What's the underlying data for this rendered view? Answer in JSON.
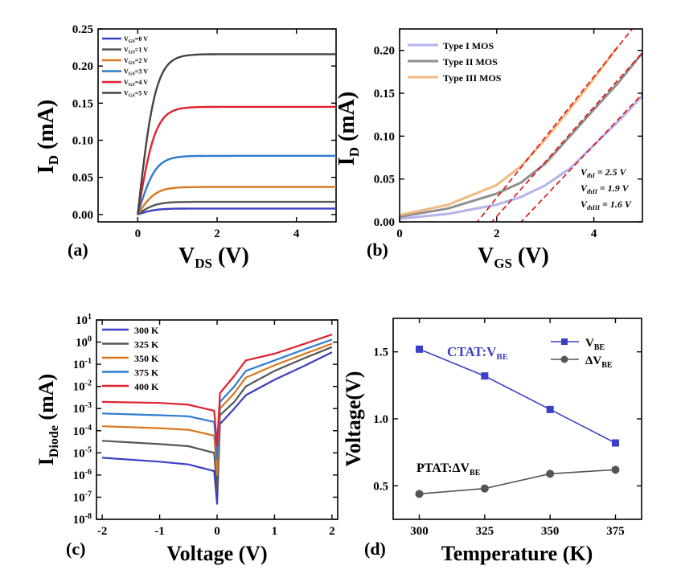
{
  "chart_data": [
    {
      "panel": "(a)",
      "type": "line",
      "xlabel": "V_DS (V)",
      "xlabel_main": "V",
      "xlabel_sub": "DS",
      "xlabel_unit": " (V)",
      "ylabel": "I_D (mA)",
      "ylabel_main": "I",
      "ylabel_sub": "D",
      "ylabel_unit": " (mA)",
      "xlim": [
        -1,
        5
      ],
      "ylim": [
        -0.01,
        0.25
      ],
      "xticks": [
        0,
        2,
        4
      ],
      "yticks": [
        0.0,
        0.05,
        0.1,
        0.15,
        0.2,
        0.25
      ],
      "ytick_labels": [
        "0.00",
        "0.05",
        "0.10",
        "0.15",
        "0.20",
        "0.25"
      ],
      "legend_position": "top-left",
      "series": [
        {
          "name": "VGS=0 V",
          "color": "#3b3fc6",
          "sat": 0.008,
          "x": [
            0,
            0.2,
            0.5,
            1,
            2,
            3,
            4,
            5
          ],
          "values": [
            0,
            0.004,
            0.007,
            0.008,
            0.008,
            0.008,
            0.008,
            0.008
          ]
        },
        {
          "name": "VGS=1 V",
          "color": "#555555",
          "sat": 0.017,
          "x": [
            0,
            0.2,
            0.5,
            1,
            2,
            3,
            4,
            5
          ],
          "values": [
            0,
            0.009,
            0.014,
            0.016,
            0.017,
            0.017,
            0.017,
            0.017
          ]
        },
        {
          "name": "VGS=2 V",
          "color": "#d9771a",
          "sat": 0.037,
          "x": [
            0,
            0.2,
            0.5,
            1,
            2,
            3,
            4,
            5
          ],
          "values": [
            0,
            0.017,
            0.029,
            0.035,
            0.037,
            0.037,
            0.037,
            0.037
          ]
        },
        {
          "name": "VGS=3 V",
          "color": "#2e7bcf",
          "sat": 0.079,
          "x": [
            0,
            0.2,
            0.5,
            1,
            2,
            3,
            4,
            5
          ],
          "values": [
            0,
            0.035,
            0.061,
            0.074,
            0.078,
            0.079,
            0.079,
            0.079
          ]
        },
        {
          "name": "VGS=4 V",
          "color": "#e02030",
          "sat": 0.145,
          "x": [
            0,
            0.2,
            0.5,
            1,
            2,
            3,
            4,
            5
          ],
          "values": [
            0,
            0.062,
            0.11,
            0.134,
            0.143,
            0.145,
            0.145,
            0.145
          ]
        },
        {
          "name": "VGS=5 V",
          "color": "#444444",
          "sat": 0.216,
          "x": [
            0,
            0.2,
            0.5,
            1,
            2,
            3,
            4,
            5
          ],
          "values": [
            0,
            0.09,
            0.16,
            0.198,
            0.213,
            0.215,
            0.216,
            0.216
          ]
        }
      ]
    },
    {
      "panel": "(b)",
      "type": "line",
      "xlabel": "V_GS (V)",
      "xlabel_main": "V",
      "xlabel_sub": "GS",
      "xlabel_unit": " (V)",
      "ylabel": "I_D (mA)",
      "ylabel_main": "I",
      "ylabel_sub": "D",
      "ylabel_unit": " (mA)",
      "xlim": [
        0,
        5
      ],
      "ylim": [
        0,
        0.225
      ],
      "xticks": [
        0,
        2,
        4
      ],
      "yticks": [
        0.0,
        0.05,
        0.1,
        0.15,
        0.2
      ],
      "ytick_labels": [
        "0.00",
        "0.05",
        "0.10",
        "0.15",
        "0.20"
      ],
      "legend_position": "top-left",
      "series": [
        {
          "name": "Type I MOS",
          "color": "#b3b3ee",
          "vth": 2.5,
          "slope": 0.0597,
          "x": [
            0,
            1,
            2,
            2.5,
            3,
            3.5,
            4,
            4.5,
            5
          ],
          "values": [
            0.0037,
            0.0094,
            0.0201,
            0.0291,
            0.0427,
            0.062,
            0.0893,
            0.117,
            0.147
          ]
        },
        {
          "name": "Type II MOS",
          "color": "#8f8f8f",
          "vth": 1.9,
          "slope": 0.0637,
          "x": [
            0,
            1,
            2,
            2.5,
            3,
            3.5,
            4,
            4.5,
            5
          ],
          "values": [
            0.006,
            0.0157,
            0.033,
            0.0458,
            0.0679,
            0.0995,
            0.131,
            0.162,
            0.197
          ]
        },
        {
          "name": "Type III MOS",
          "color": "#f0b97f",
          "vth": 1.6,
          "slope": 0.0705,
          "x": [
            0,
            1,
            2,
            2.5,
            3,
            3.5,
            4,
            4.5
          ],
          "values": [
            0.008,
            0.02,
            0.043,
            0.065,
            0.096,
            0.131,
            0.167,
            0.205
          ]
        }
      ],
      "fit_lines": {
        "color": "#e01010",
        "style": "dashed"
      },
      "annotations": [
        {
          "label": "V",
          "sub": "thI",
          "value": " = 2.5 V"
        },
        {
          "label": "V",
          "sub": "thII",
          "value": " = 1.9 V"
        },
        {
          "label": "V",
          "sub": "thIII",
          "value": " = 1.6 V"
        }
      ]
    },
    {
      "panel": "(c)",
      "type": "line",
      "xlabel": "Voltage (V)",
      "ylabel": "I_Diode (mA)",
      "ylabel_main": "I",
      "ylabel_sub": "Diode",
      "ylabel_unit": " (mA)",
      "yscale": "log",
      "xlim": [
        -2.1,
        2.1
      ],
      "ylim": [
        1e-08,
        10
      ],
      "xticks": [
        -2,
        -1,
        0,
        1,
        2
      ],
      "yticks_exp": [
        -8,
        -7,
        -6,
        -5,
        -4,
        -3,
        -2,
        -1,
        0,
        1
      ],
      "legend_position": "top-left",
      "series": [
        {
          "name": "300 K",
          "color": "#3b3fc6",
          "x": [
            -2,
            -1,
            -0.5,
            -0.05,
            0,
            0.05,
            0.3,
            0.5,
            1,
            1.5,
            2
          ],
          "values": [
            6e-06,
            4e-06,
            3e-06,
            1.5e-06,
            5e-08,
            0.0002,
            0.001,
            0.004,
            0.02,
            0.08,
            0.35
          ]
        },
        {
          "name": "325 K",
          "color": "#555555",
          "x": [
            -2,
            -1,
            -0.5,
            -0.05,
            0,
            0.05,
            0.3,
            0.5,
            1,
            1.5,
            2
          ],
          "values": [
            3.5e-05,
            2.5e-05,
            2e-05,
            1e-05,
            2e-07,
            0.0005,
            0.002,
            0.01,
            0.05,
            0.18,
            0.6
          ]
        },
        {
          "name": "350 K",
          "color": "#d9771a",
          "x": [
            -2,
            -1,
            -0.5,
            -0.05,
            0,
            0.05,
            0.3,
            0.5,
            1,
            1.5,
            2
          ],
          "values": [
            0.00016,
            0.00013,
            0.00011,
            6e-05,
            1e-06,
            0.001,
            0.005,
            0.025,
            0.09,
            0.28,
            0.85
          ]
        },
        {
          "name": "375 K",
          "color": "#2e7bcf",
          "x": [
            -2,
            -1,
            -0.5,
            -0.05,
            0,
            0.05,
            0.3,
            0.5,
            1,
            1.5,
            2
          ],
          "values": [
            0.0006,
            0.0005,
            0.00045,
            0.00025,
            5e-06,
            0.002,
            0.01,
            0.05,
            0.15,
            0.45,
            1.3
          ]
        },
        {
          "name": "400 K",
          "color": "#e02030",
          "x": [
            -2,
            -1,
            -0.5,
            -0.05,
            0,
            0.05,
            0.3,
            0.5,
            1,
            1.5,
            2
          ],
          "values": [
            0.002,
            0.0018,
            0.0015,
            0.0008,
            2e-05,
            0.005,
            0.03,
            0.15,
            0.3,
            0.8,
            2.2
          ]
        }
      ]
    },
    {
      "panel": "(d)",
      "type": "line",
      "xlabel": "Temperature (K)",
      "ylabel": "Voltage(V)",
      "xlim": [
        290,
        385
      ],
      "ylim": [
        0.25,
        1.75
      ],
      "xticks": [
        300,
        325,
        350,
        375
      ],
      "yticks": [
        0.5,
        1.0,
        1.5
      ],
      "ytick_labels": [
        "0.5",
        "1.0",
        "1.5"
      ],
      "legend_position": "top-right",
      "series": [
        {
          "name": "V_BE",
          "name_main": "V",
          "name_sub": "BE",
          "marker": "square",
          "color": "#3b3fc6",
          "x": [
            300,
            325,
            350,
            375
          ],
          "values": [
            1.52,
            1.32,
            1.07,
            0.82
          ]
        },
        {
          "name": "ΔV_BE",
          "name_main": "ΔV",
          "name_sub": "BE",
          "marker": "circle",
          "color": "#555555",
          "x": [
            300,
            325,
            350,
            375
          ],
          "values": [
            0.44,
            0.48,
            0.59,
            0.62
          ]
        }
      ],
      "annotations": [
        {
          "label": "CTAT:V",
          "sub": "BE",
          "color": "#3b3fc6"
        },
        {
          "label": "PTAT:ΔV",
          "sub": "BE",
          "color": "#000000"
        }
      ]
    }
  ]
}
